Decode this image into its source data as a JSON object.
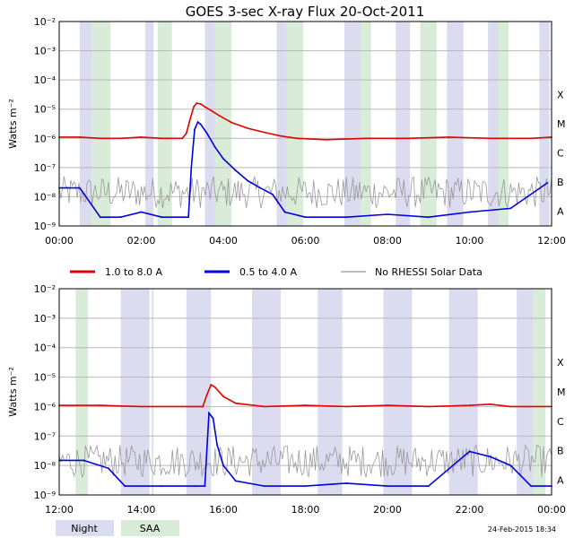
{
  "title": "GOES 3-sec X-ray Flux   20-Oct-2011",
  "legend": [
    {
      "label": "1.0 to 8.0 A",
      "color": "#e00000"
    },
    {
      "label": "0.5 to 4.0 A",
      "color": "#0000e0"
    },
    {
      "label": "No RHESSI Solar Data",
      "color": "#999999"
    }
  ],
  "band_legend": [
    {
      "label": "Night",
      "color": "#dcdcf0"
    },
    {
      "label": "SAA",
      "color": "#d8ecd8"
    }
  ],
  "timestamp": "24-Feb-2015 18:34",
  "chart_data": [
    {
      "type": "line",
      "title": "GOES 3-sec X-ray Flux   20-Oct-2011",
      "ylabel": "Watts m⁻²",
      "yscale": "log",
      "ylim": [
        1e-09,
        0.01
      ],
      "xlim": [
        0,
        12
      ],
      "x_tick_labels": [
        "00:00",
        "02:00",
        "04:00",
        "06:00",
        "08:00",
        "10:00",
        "12:00"
      ],
      "y_tick_exponents": [
        -2,
        -3,
        -4,
        -5,
        -6,
        -7,
        -8,
        -9
      ],
      "class_labels": [
        "X",
        "M",
        "C",
        "B",
        "A"
      ],
      "night": [
        [
          0.5,
          0.8
        ],
        [
          2.1,
          2.3
        ],
        [
          3.55,
          3.8
        ],
        [
          5.3,
          5.55
        ],
        [
          6.95,
          7.35
        ],
        [
          8.2,
          8.55
        ],
        [
          9.45,
          9.85
        ],
        [
          10.45,
          10.7
        ],
        [
          11.7,
          11.95
        ]
      ],
      "saa": [
        [
          0.8,
          1.25
        ],
        [
          2.4,
          2.75
        ],
        [
          3.8,
          4.2
        ],
        [
          5.55,
          5.95
        ],
        [
          7.35,
          7.6
        ],
        [
          8.8,
          9.2
        ],
        [
          10.7,
          10.95
        ]
      ],
      "series": [
        {
          "name": "1.0 to 8.0 A",
          "color": "#e00000",
          "x": [
            0,
            0.5,
            1,
            1.5,
            2,
            2.5,
            3,
            3.1,
            3.2,
            3.28,
            3.35,
            3.45,
            3.55,
            3.7,
            3.9,
            4.2,
            4.6,
            5.0,
            5.4,
            5.8,
            6.5,
            7.5,
            8.5,
            9.5,
            10.5,
            11.5,
            12
          ],
          "y": [
            1.1e-06,
            1.1e-06,
            1e-06,
            1e-06,
            1.1e-06,
            1e-06,
            1e-06,
            1.5e-06,
            5e-06,
            1.2e-05,
            1.6e-05,
            1.5e-05,
            1.2e-05,
            9e-06,
            6e-06,
            3.5e-06,
            2.2e-06,
            1.6e-06,
            1.2e-06,
            1e-06,
            9e-07,
            1e-06,
            1e-06,
            1.1e-06,
            1e-06,
            1e-06,
            1.1e-06
          ]
        },
        {
          "name": "0.5 to 4.0 A",
          "color": "#0000e0",
          "x": [
            0,
            0.5,
            1,
            1.5,
            2,
            2.5,
            3,
            3.15,
            3.22,
            3.3,
            3.38,
            3.45,
            3.6,
            3.8,
            4.0,
            4.3,
            4.6,
            4.9,
            5.2,
            5.5,
            6,
            7,
            8,
            9,
            10,
            11,
            11.9
          ],
          "y": [
            2e-08,
            2e-08,
            2e-09,
            2e-09,
            3e-09,
            2e-09,
            2e-09,
            2e-09,
            1e-07,
            2e-06,
            3.6e-06,
            3e-06,
            1.5e-06,
            5e-07,
            2e-07,
            8e-08,
            3.5e-08,
            2e-08,
            1.2e-08,
            3e-09,
            2e-09,
            2e-09,
            2.5e-09,
            2e-09,
            3e-09,
            4e-09,
            3e-08
          ]
        }
      ]
    },
    {
      "type": "line",
      "title": "",
      "ylabel": "Watts m⁻²",
      "yscale": "log",
      "ylim": [
        1e-09,
        0.01
      ],
      "xlim": [
        12,
        24
      ],
      "x_tick_labels": [
        "12:00",
        "14:00",
        "16:00",
        "18:00",
        "20:00",
        "22:00",
        "00:00"
      ],
      "y_tick_exponents": [
        -2,
        -3,
        -4,
        -5,
        -6,
        -7,
        -8,
        -9
      ],
      "class_labels": [
        "X",
        "M",
        "C",
        "B",
        "A"
      ],
      "night": [
        [
          13.5,
          14.2
        ],
        [
          15.1,
          15.7
        ],
        [
          16.7,
          17.4
        ],
        [
          18.3,
          18.9
        ],
        [
          19.9,
          20.6
        ],
        [
          21.5,
          22.2
        ],
        [
          23.15,
          23.55
        ]
      ],
      "saa": [
        [
          12.4,
          12.7
        ],
        [
          14.25,
          14.3
        ],
        [
          23.55,
          23.85
        ]
      ],
      "series": [
        {
          "name": "1.0 to 8.0 A",
          "color": "#e00000",
          "x": [
            12,
            13,
            14,
            15,
            15.5,
            15.6,
            15.7,
            15.8,
            16,
            16.3,
            17,
            18,
            19,
            20,
            21,
            22,
            22.5,
            23,
            24
          ],
          "y": [
            1.1e-06,
            1.1e-06,
            1e-06,
            1e-06,
            1e-06,
            2.5e-06,
            5.5e-06,
            4.5e-06,
            2.2e-06,
            1.3e-06,
            1e-06,
            1.1e-06,
            1e-06,
            1.1e-06,
            1e-06,
            1.1e-06,
            1.2e-06,
            1e-06,
            1e-06
          ]
        },
        {
          "name": "0.5 to 4.0 A",
          "color": "#0000e0",
          "x": [
            12,
            12.6,
            13.2,
            13.6,
            14.5,
            15.3,
            15.55,
            15.65,
            15.75,
            15.85,
            16.0,
            16.3,
            17,
            18,
            19,
            20,
            21,
            22,
            22.5,
            23,
            23.5,
            24
          ],
          "y": [
            1.5e-08,
            1.5e-08,
            8e-09,
            2e-09,
            2e-09,
            2e-09,
            2e-09,
            6e-07,
            4e-07,
            5e-08,
            1e-08,
            3e-09,
            2e-09,
            2e-09,
            2.5e-09,
            2e-09,
            2e-09,
            3e-08,
            2e-08,
            1e-08,
            2e-09,
            2e-09
          ]
        }
      ]
    }
  ]
}
